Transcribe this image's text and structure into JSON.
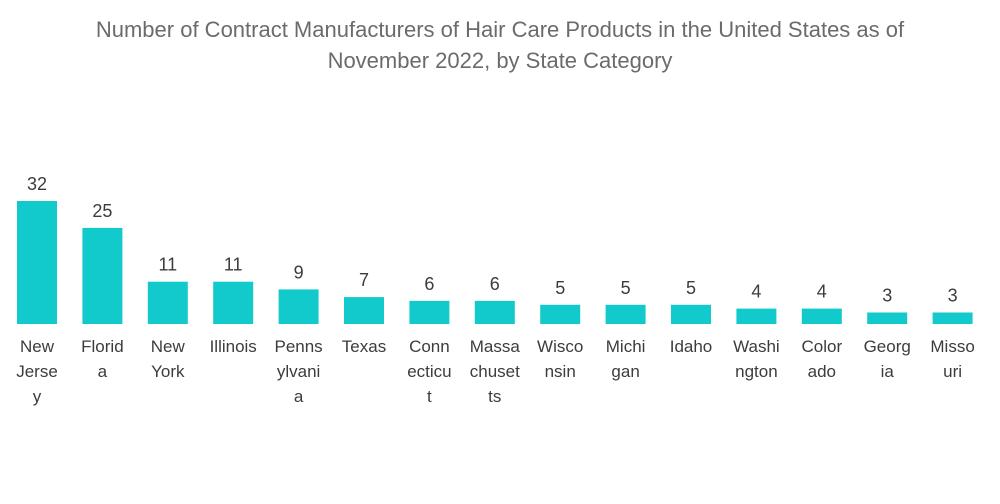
{
  "chart_data": {
    "type": "bar",
    "title_lines": [
      "Number of Contract Manufacturers of Hair Care Products in the United States as of",
      "November 2022, by State Category"
    ],
    "xlabel": "",
    "ylabel": "",
    "ylim": [
      0,
      32
    ],
    "grid": false,
    "legend": "none",
    "bar_color": "#12CACC",
    "categories": [
      [
        "New",
        "Jerse",
        "y"
      ],
      [
        "Florid",
        "a"
      ],
      [
        "New",
        "York"
      ],
      [
        "Illinois"
      ],
      [
        "Penns",
        "ylvani",
        "a"
      ],
      [
        "Texas"
      ],
      [
        "Conn",
        "ecticu",
        "t"
      ],
      [
        "Massa",
        "chuset",
        "ts"
      ],
      [
        "Wisco",
        "nsin"
      ],
      [
        "Michi",
        "gan"
      ],
      [
        "Idaho"
      ],
      [
        "Washi",
        "ngton"
      ],
      [
        "Color",
        "ado"
      ],
      [
        "Georg",
        "ia"
      ],
      [
        "Misso",
        "uri"
      ]
    ],
    "values": [
      32,
      25,
      11,
      11,
      9,
      7,
      6,
      6,
      5,
      5,
      5,
      4,
      4,
      3,
      3
    ]
  }
}
